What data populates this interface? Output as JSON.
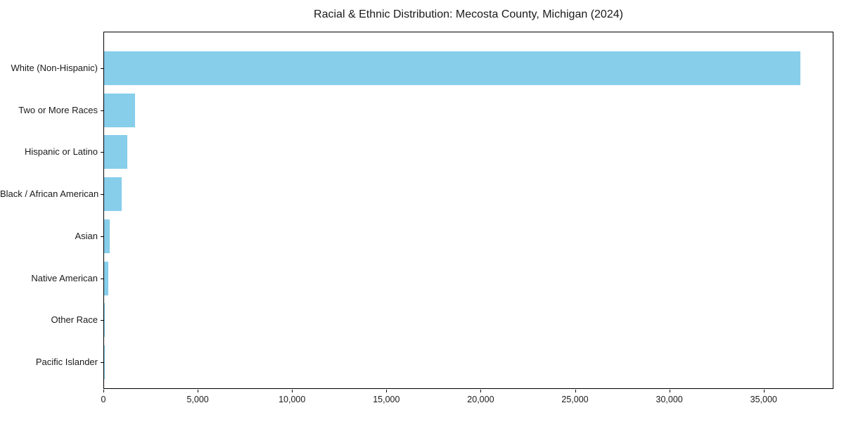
{
  "title": "Racial & Ethnic Distribution: Mecosta County, Michigan (2024)",
  "chart_data": {
    "type": "bar",
    "orientation": "horizontal",
    "title": "Racial & Ethnic Distribution: Mecosta County, Michigan (2024)",
    "categories": [
      "White (Non-Hispanic)",
      "Two or More Races",
      "Hispanic or Latino",
      "Black / African American",
      "Asian",
      "Native American",
      "Other Race",
      "Pacific Islander"
    ],
    "values": [
      36900,
      1650,
      1220,
      930,
      310,
      240,
      50,
      10
    ],
    "xlabel": "",
    "ylabel": "",
    "x_ticks": [
      0,
      5000,
      10000,
      15000,
      20000,
      25000,
      30000,
      35000
    ],
    "x_tick_labels": [
      "0",
      "5,000",
      "10,000",
      "15,000",
      "20,000",
      "25,000",
      "30,000",
      "35,000"
    ],
    "xlim": [
      0,
      38700
    ],
    "grid": false,
    "legend_position": "none",
    "bar_color": "#87CEEB",
    "background_color": "#FFFFFF",
    "spine_color": "#000000",
    "text_color": "#1a1a1a"
  }
}
